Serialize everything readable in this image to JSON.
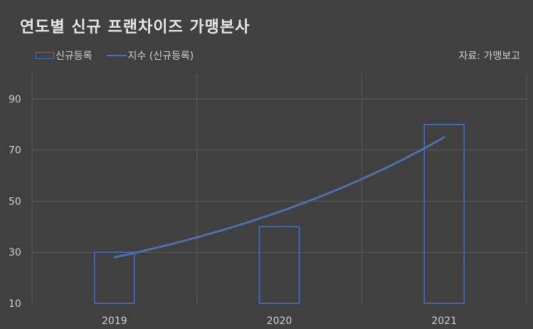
{
  "title": "연도별 신규 프랜차이즈 가맹본사",
  "source": "자료: 가맹보고",
  "colors": {
    "background": "#404040",
    "bar_stroke": "#4472c4",
    "trend_line": "#4e6fa8",
    "grid": "#5a5a5a"
  },
  "chart_data": {
    "type": "bar",
    "categories": [
      "2019",
      "2020",
      "2021"
    ],
    "series": [
      {
        "name": "신규등록",
        "values": [
          30,
          40,
          80
        ]
      }
    ],
    "trendline": {
      "name": "지수 (신규등록)",
      "type": "exponential",
      "values": [
        28,
        46,
        75
      ]
    },
    "ylim": [
      10,
      100
    ],
    "yticks": [
      10,
      30,
      50,
      70,
      90
    ],
    "grid": true,
    "legend": "top-left",
    "title": "연도별 신규 프랜차이즈 가맹본사",
    "xlabel": "",
    "ylabel": ""
  }
}
